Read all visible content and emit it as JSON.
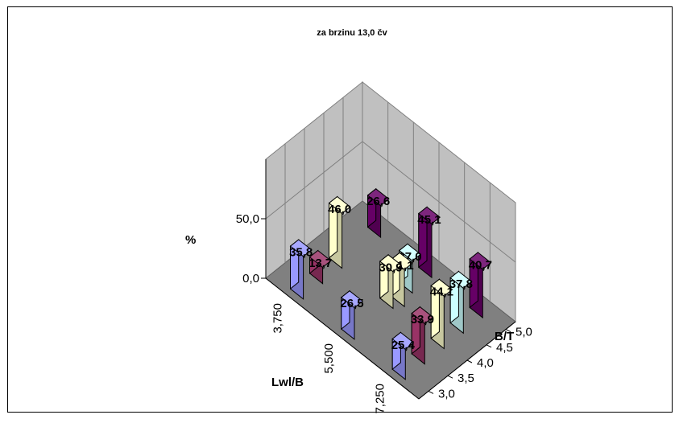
{
  "chart_data": {
    "type": "bar3d",
    "title": "za brzinu  13,0 čv",
    "xlabel": "Lwl/B",
    "ylabel": "B/T",
    "zlabel": "%",
    "x_ticks": [
      "3,750",
      "5,500",
      "7,250"
    ],
    "y_ticks": [
      "3,0",
      "3,5",
      "4,0",
      "4,5",
      "5,0"
    ],
    "z_ticks": [
      "0,0",
      "50,0"
    ],
    "zlim": [
      0,
      100
    ],
    "grid": true,
    "colors": {
      "3,0": "#9999ff",
      "3,5": "#993366",
      "4,0": "#ffffcc",
      "4,5": "#ccffff",
      "5,0": "#660066"
    },
    "points": [
      {
        "x": "3,750",
        "y": "3,0",
        "value": 35.8,
        "label": "35,8"
      },
      {
        "x": "3,750",
        "y": "3,5",
        "value": 13.7,
        "label": "13,7"
      },
      {
        "x": "3,750",
        "y": "4,0",
        "value": 46.0,
        "label": "46,0"
      },
      {
        "x": "3,750",
        "y": "5,0",
        "value": 26.6,
        "label": "26,6"
      },
      {
        "x": "5,500",
        "y": "3,0",
        "value": 26.5,
        "label": "26,5"
      },
      {
        "x": "5,500",
        "y": "4,0",
        "value": 30.9,
        "label": "30,9"
      },
      {
        "x": "5,500",
        "y": "4,5",
        "value": 27.0,
        "label": "27,0"
      },
      {
        "x": "5,500",
        "y": "5,0",
        "value": 45.1,
        "label": "45,1"
      },
      {
        "x": "7,250",
        "y": "3,0",
        "value": 25.4,
        "label": "25,4"
      },
      {
        "x": "7,250",
        "y": "3,5",
        "value": 33.9,
        "label": "33,9"
      },
      {
        "x": "7,250",
        "y": "4,0",
        "value": 44.1,
        "label": "44,1"
      },
      {
        "x": "7,250",
        "y": "4,5",
        "value": 37.8,
        "label": "37,8"
      },
      {
        "x": "7,250",
        "y": "5,0",
        "value": 40.7,
        "label": "40,7"
      },
      {
        "x": "5,500",
        "y": "4,0",
        "value": 31.1,
        "label": "31,1",
        "group": 2
      }
    ]
  }
}
